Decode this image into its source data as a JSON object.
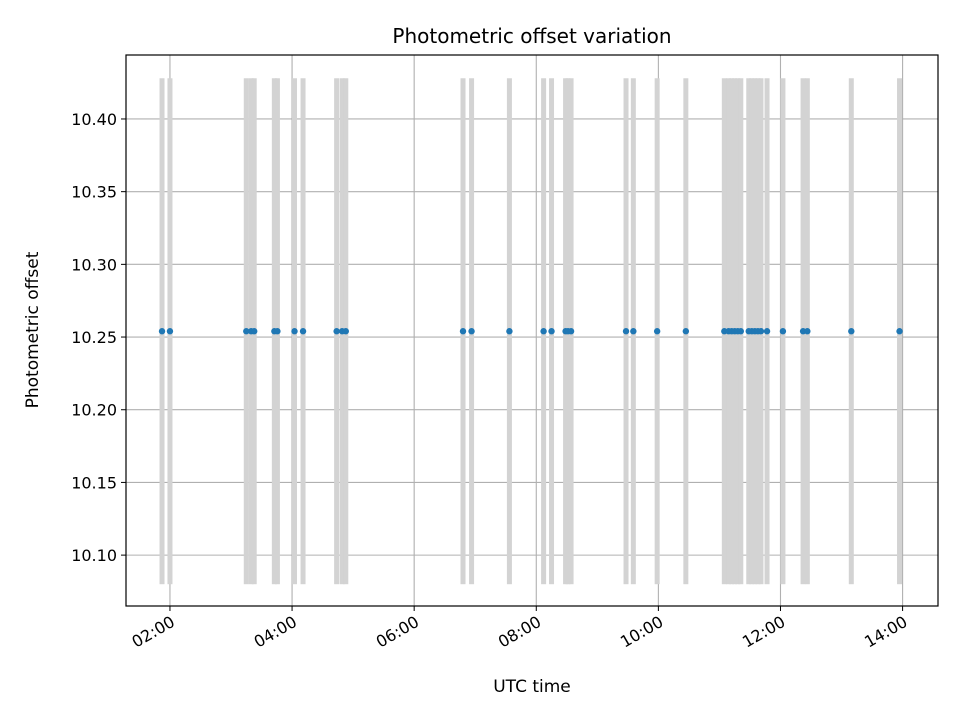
{
  "chart_data": {
    "type": "scatter",
    "title": "Photometric offset variation",
    "xlabel": "UTC time",
    "ylabel": "Photometric offset",
    "x_unit": "hours (UTC)",
    "xlim": [
      1.28,
      14.58
    ],
    "ylim": [
      10.065,
      10.444
    ],
    "x_ticks": [
      {
        "value": 2,
        "label": "02:00"
      },
      {
        "value": 4,
        "label": "04:00"
      },
      {
        "value": 6,
        "label": "06:00"
      },
      {
        "value": 8,
        "label": "08:00"
      },
      {
        "value": 10,
        "label": "10:00"
      },
      {
        "value": 12,
        "label": "12:00"
      },
      {
        "value": 14,
        "label": "14:00"
      }
    ],
    "y_ticks": [
      {
        "value": 10.1,
        "label": "10.10"
      },
      {
        "value": 10.15,
        "label": "10.15"
      },
      {
        "value": 10.2,
        "label": "10.20"
      },
      {
        "value": 10.25,
        "label": "10.25"
      },
      {
        "value": 10.3,
        "label": "10.30"
      },
      {
        "value": 10.35,
        "label": "10.35"
      },
      {
        "value": 10.4,
        "label": "10.40"
      }
    ],
    "grid": true,
    "point_color": "#1f77b4",
    "band_color": "#d3d3d3",
    "band_range": [
      10.08,
      10.428
    ],
    "x": [
      1.87,
      2.0,
      3.25,
      3.33,
      3.38,
      3.71,
      3.76,
      4.04,
      4.18,
      4.73,
      4.82,
      4.88,
      6.8,
      6.94,
      7.56,
      8.12,
      8.25,
      8.48,
      8.52,
      8.57,
      9.47,
      9.59,
      9.98,
      10.45,
      11.08,
      11.15,
      11.2,
      11.25,
      11.3,
      11.35,
      11.48,
      11.53,
      11.58,
      11.63,
      11.68,
      11.78,
      12.04,
      12.37,
      12.44,
      13.16,
      13.95
    ],
    "y": [
      10.254,
      10.254,
      10.254,
      10.254,
      10.254,
      10.254,
      10.254,
      10.254,
      10.254,
      10.254,
      10.254,
      10.254,
      10.254,
      10.254,
      10.254,
      10.254,
      10.254,
      10.254,
      10.254,
      10.254,
      10.254,
      10.254,
      10.254,
      10.254,
      10.254,
      10.254,
      10.254,
      10.254,
      10.254,
      10.254,
      10.254,
      10.254,
      10.254,
      10.254,
      10.254,
      10.254,
      10.254,
      10.254,
      10.254,
      10.254,
      10.254
    ]
  }
}
